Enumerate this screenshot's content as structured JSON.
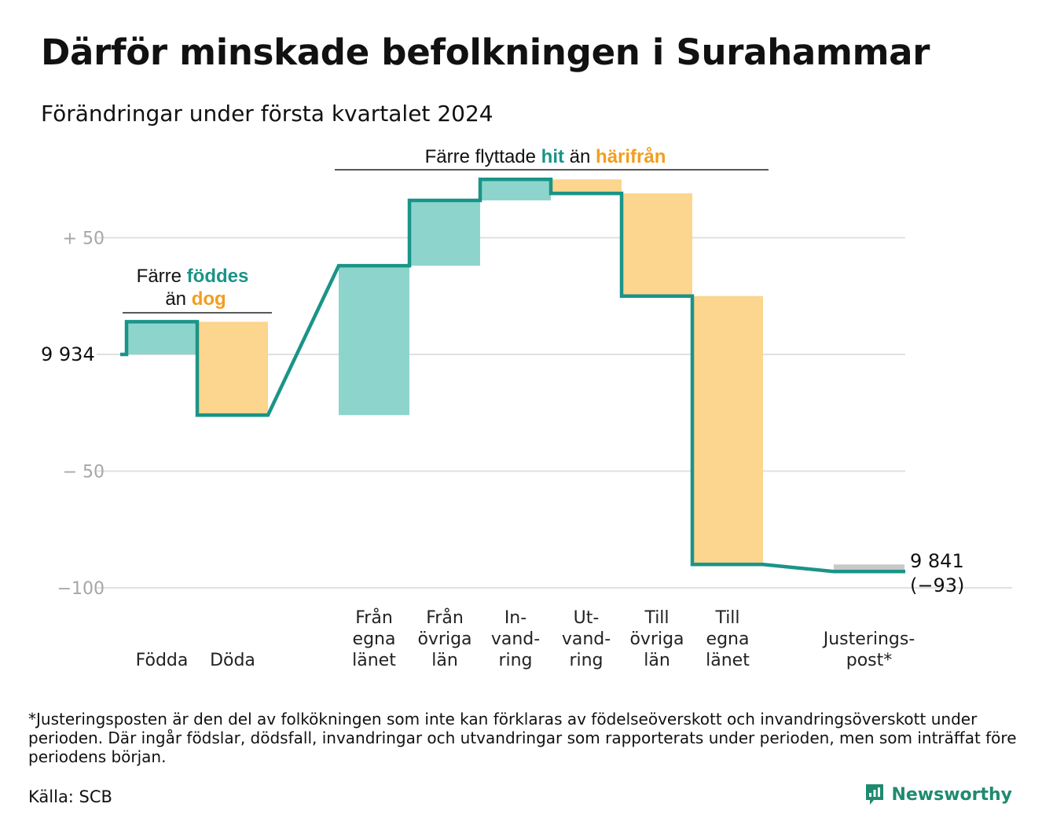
{
  "header": {
    "title": "Därför minskade befolkningen i Surahammar",
    "subtitle": "Förändringar under första kvartalet 2024"
  },
  "chart_data": {
    "type": "waterfall",
    "start": {
      "label": "9  934",
      "value": 9934
    },
    "end": {
      "label": "9 841",
      "change_label": "(−93)",
      "value": 9841
    },
    "y_axis": {
      "range": [
        -100,
        100
      ],
      "ticks": [
        {
          "value": 50,
          "label": "+  50"
        },
        {
          "value": 0,
          "label": ""
        },
        {
          "value": -50,
          "label": "−  50"
        },
        {
          "value": -100,
          "label": "−100"
        }
      ]
    },
    "steps": [
      {
        "name": "Födda",
        "label_lines": [
          "Födda"
        ],
        "change": 14,
        "kind": "in"
      },
      {
        "name": "Döda",
        "label_lines": [
          "Döda"
        ],
        "change": -40,
        "kind": "out"
      },
      {
        "name": "Från egna länet",
        "label_lines": [
          "Från",
          "egna",
          "länet"
        ],
        "change": 64,
        "kind": "in"
      },
      {
        "name": "Från övriga län",
        "label_lines": [
          "Från",
          "övriga",
          "län"
        ],
        "change": 28,
        "kind": "in"
      },
      {
        "name": "Invandring",
        "label_lines": [
          "In-",
          "vand-",
          "ring"
        ],
        "change": 9,
        "kind": "in"
      },
      {
        "name": "Utvandring",
        "label_lines": [
          "Ut-",
          "vand-",
          "ring"
        ],
        "change": -6,
        "kind": "out"
      },
      {
        "name": "Till övriga län",
        "label_lines": [
          "Till",
          "övriga",
          "län"
        ],
        "change": -44,
        "kind": "out"
      },
      {
        "name": "Till egna länet",
        "label_lines": [
          "Till",
          "egna",
          "länet"
        ],
        "change": -115,
        "kind": "out"
      },
      {
        "name": "Justeringspost*",
        "label_lines": [
          "Justerings-",
          "post*"
        ],
        "change": -3,
        "kind": "adjust"
      }
    ],
    "annotations": {
      "births": {
        "prefix": "Färre",
        "highlight_in": "föddes",
        "connector": "än",
        "highlight_out": "dog"
      },
      "moves": {
        "prefix": "Färre flyttade",
        "highlight_in": "hit",
        "connector": "än",
        "highlight_out": "härifrån"
      }
    },
    "grid": true,
    "colors": {
      "in": "#8dd5cc",
      "out": "#fcd58e",
      "adjust": "#c8c8c8",
      "line": "#1a9488",
      "grid": "#e0e0e0"
    }
  },
  "footnote": "*Justeringsposten är den del av folkökningen som inte kan förklaras av födelseöverskott och invandringsöverskott under perioden. Där ingår födslar, dödsfall, invandringar och utvandringar som rapporterats under perioden, men som inträffat före periodens början.",
  "source": "Källa: SCB",
  "brand": {
    "name": "Newsworthy",
    "icon": "newsworthy-logo-icon"
  }
}
